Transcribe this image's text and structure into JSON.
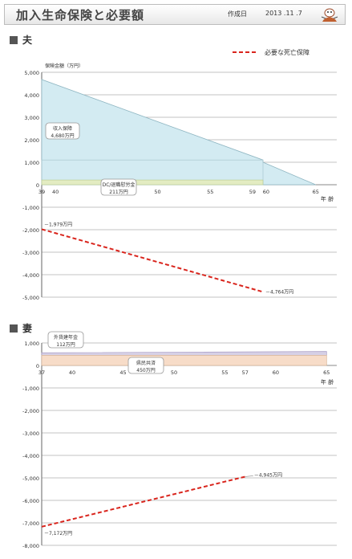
{
  "header": {
    "title": "加入生命保険と必要額",
    "date_label": "作成日",
    "date": "2013 .11 .7",
    "logo_icon": "cartoon-logo-icon"
  },
  "colors": {
    "required_line": "#d9251d",
    "income_security": "#d3ebf2",
    "income_edge": "#8fb6c2",
    "retirement": "#e3ecc2",
    "foreign_pension": "#d6d0e6",
    "mutual_aid": "#f7dcc8",
    "grid": "#888888"
  },
  "chart_data": [
    {
      "type": "area",
      "section": "夫",
      "legend": "必要な死亡保障",
      "legend_position": "top-right",
      "ylabel": "保険金額（万円）",
      "xlabel": "年 齢",
      "x_ticks": [
        "39",
        "40",
        "45",
        "50",
        "55",
        "59",
        "60",
        "65"
      ],
      "xlim": [
        39,
        67
      ],
      "ylim": [
        -5000,
        5000
      ],
      "y_ticks": [
        5000,
        4000,
        3000,
        2000,
        1000,
        0,
        -1000,
        -2000,
        -3000,
        -4000,
        -5000
      ],
      "y_tick_labels": [
        "5,000",
        "4,000",
        "3,000",
        "2,000",
        "1,000",
        "0",
        "-1,000",
        "-2,000",
        "-3,000",
        "-4,000",
        "-5,000"
      ],
      "grid": true,
      "coverage": [
        {
          "name": "収入保障",
          "label_value": "4,680万円",
          "points": [
            [
              39,
              4680
            ],
            [
              60,
              1100
            ],
            [
              60,
              1000
            ],
            [
              65,
              0
            ]
          ],
          "color": "#d3ebf2"
        },
        {
          "name": "DC/退職慰労金",
          "label_value": "211万円",
          "points": [
            [
              39,
              211
            ],
            [
              60,
              211
            ]
          ],
          "color": "#e3ecc2"
        }
      ],
      "required": {
        "name": "必要な死亡保障",
        "points": [
          [
            39,
            -1979
          ],
          [
            60,
            -4764
          ]
        ],
        "start_label": "－1,979万円",
        "end_label": "－4,764万円"
      }
    },
    {
      "type": "area",
      "section": "妻",
      "xlabel": "年 齢",
      "x_ticks": [
        "37",
        "40",
        "45",
        "50",
        "55",
        "57",
        "60",
        "65"
      ],
      "xlim": [
        37,
        66
      ],
      "ylim": [
        -8000,
        1000
      ],
      "y_ticks": [
        1000,
        0,
        -1000,
        -2000,
        -3000,
        -4000,
        -5000,
        -6000,
        -7000,
        -8000
      ],
      "y_tick_labels": [
        "1,000",
        "0",
        "-1,000",
        "-2,000",
        "-3,000",
        "-4,000",
        "-5,000",
        "-6,000",
        "-7,000",
        "-8,000"
      ],
      "grid": true,
      "coverage": [
        {
          "name": "外貨建年金",
          "label_value": "112万円",
          "points": [
            [
              37,
              562
            ],
            [
              65,
              562
            ]
          ],
          "color": "#d6d0e6"
        },
        {
          "name": "県民共済",
          "label_value": "450万円",
          "points": [
            [
              37,
              450
            ],
            [
              65,
              450
            ]
          ],
          "color": "#f7dcc8"
        }
      ],
      "required": {
        "name": "必要な死亡保障",
        "points": [
          [
            37,
            -7172
          ],
          [
            57,
            -4945
          ]
        ],
        "start_label": "－7,172万円",
        "end_label": "－4,945万円"
      }
    }
  ]
}
